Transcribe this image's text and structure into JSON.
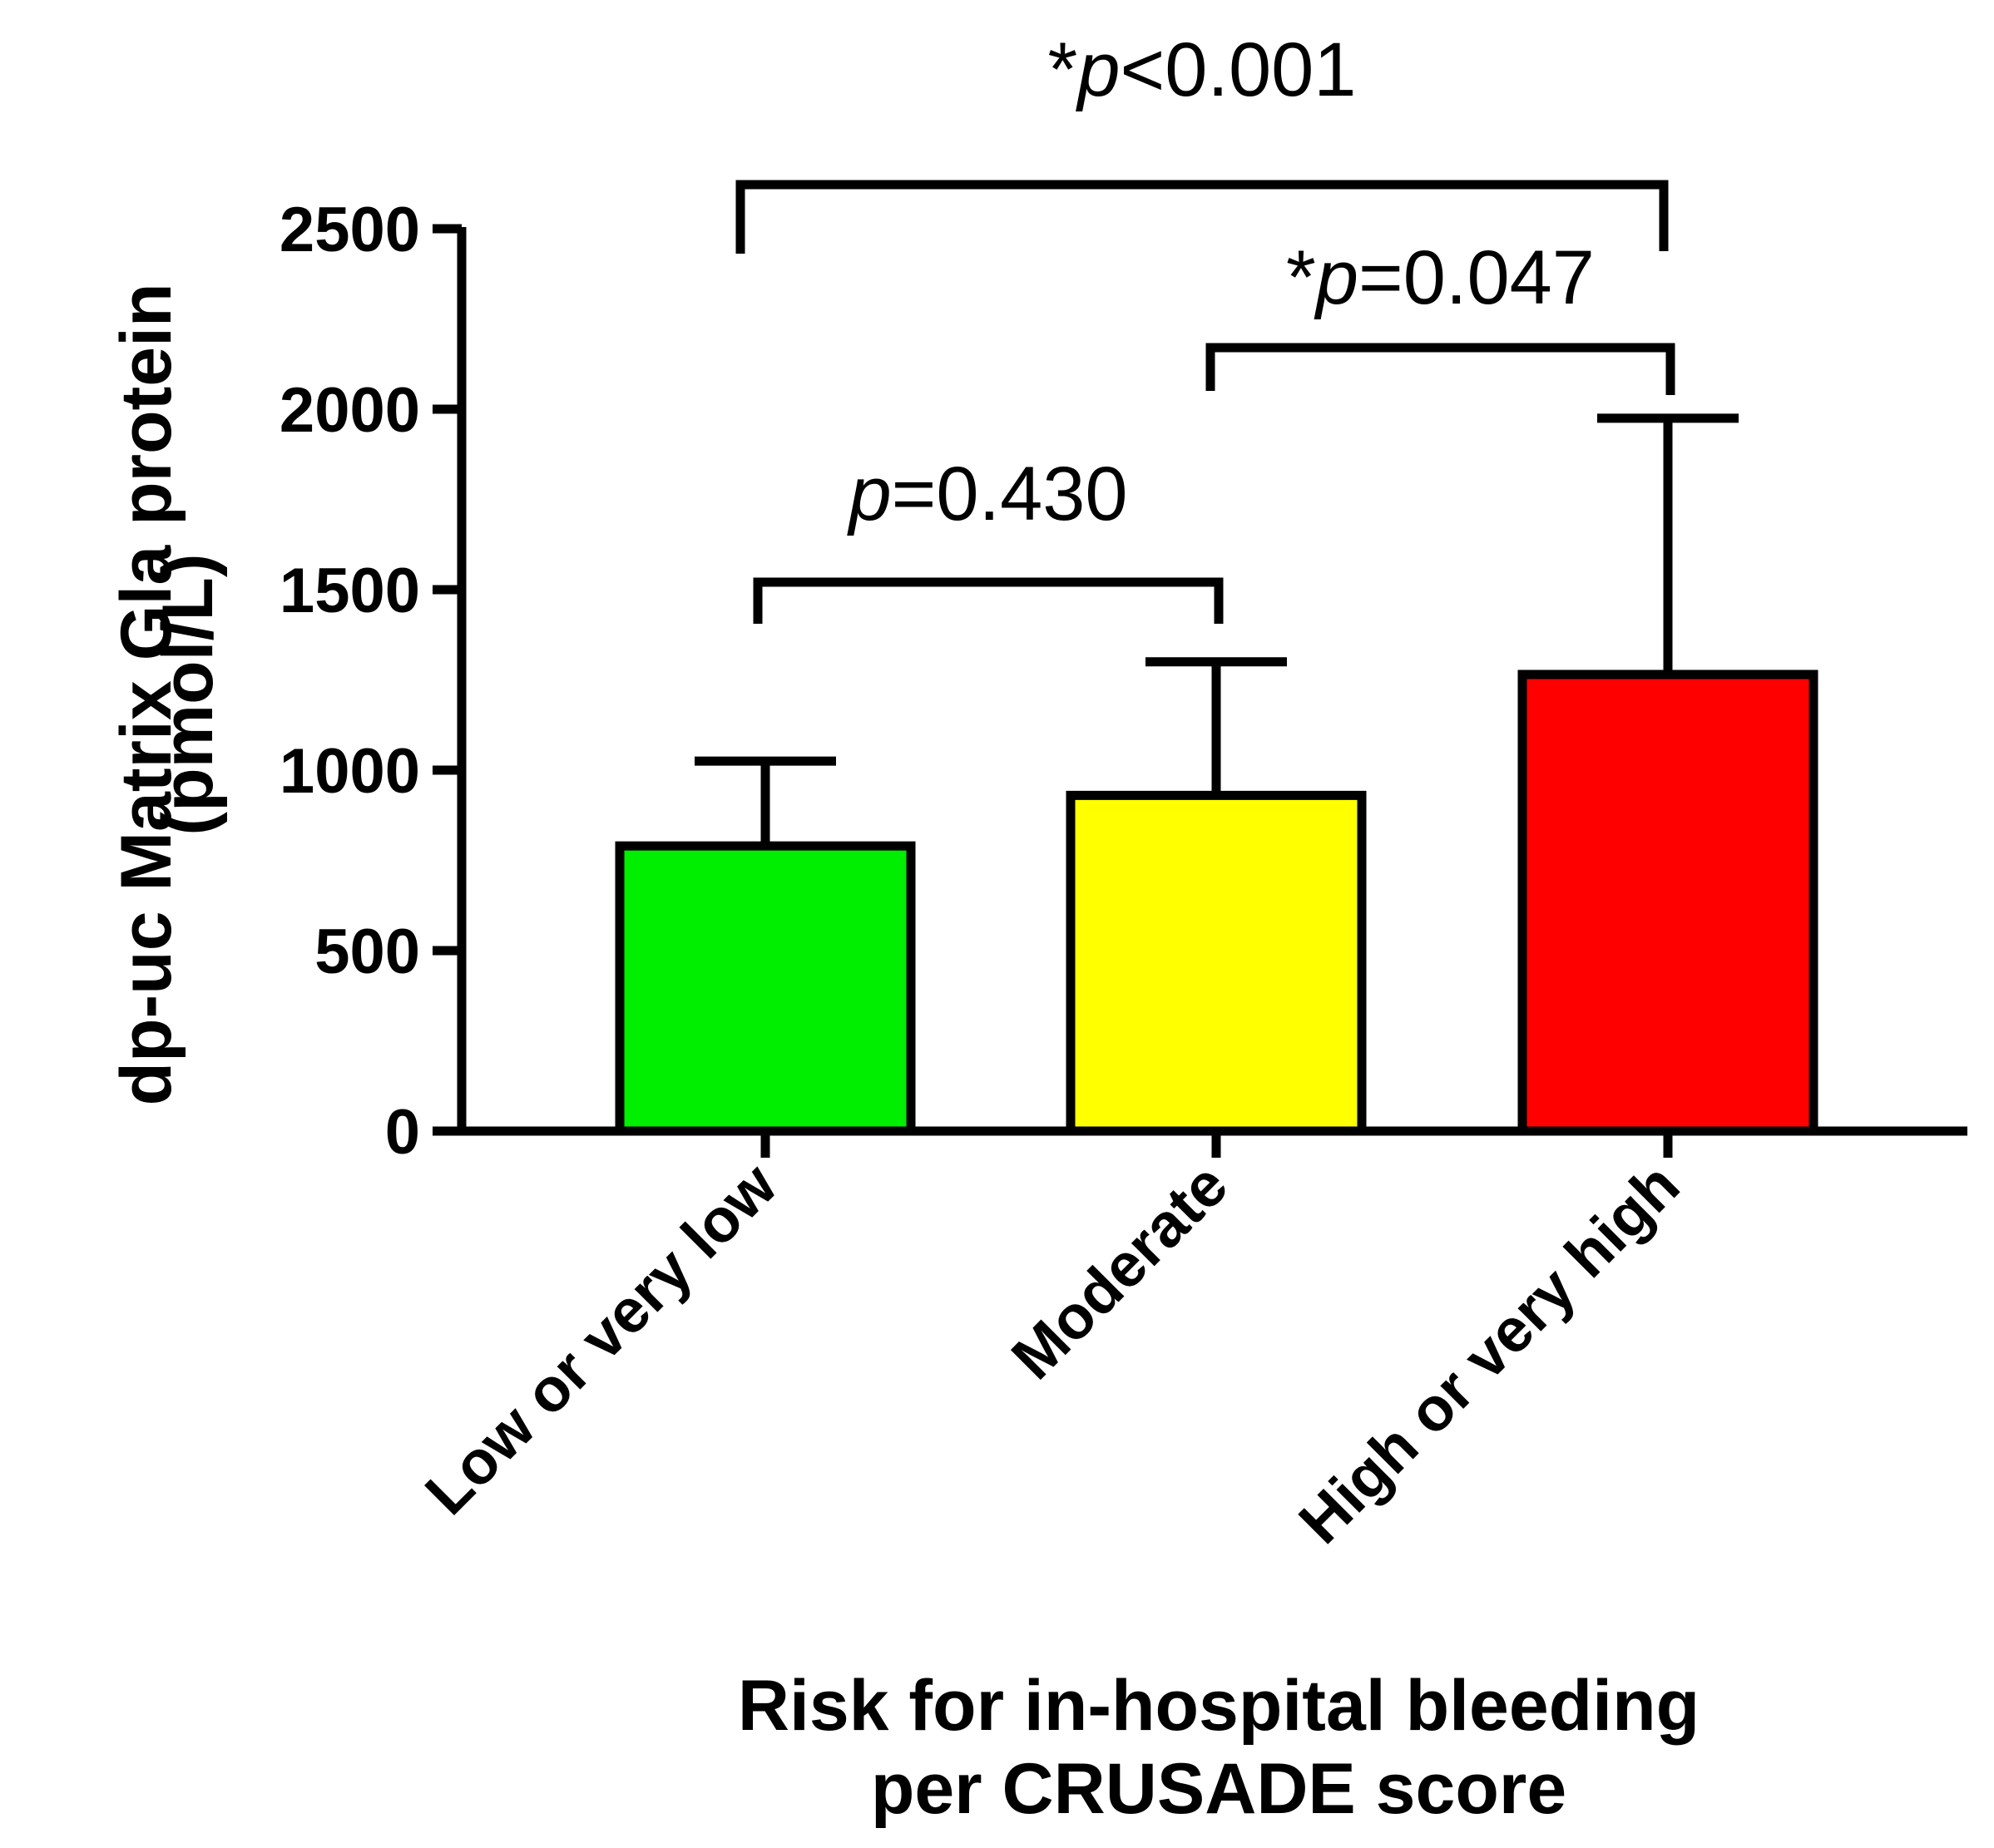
{
  "chart_data": {
    "type": "bar",
    "title": "",
    "xlabel": [
      "Risk for in-hospital bleeding",
      "per CRUSADE score"
    ],
    "ylabel": [
      "dp-uc Matrix Gla protein",
      "(pmol/L)"
    ],
    "ylim": [
      0,
      2500
    ],
    "yticks": [
      0,
      500,
      1000,
      1500,
      2000,
      2500
    ],
    "ytick_labels": [
      "0",
      "500",
      "1000",
      "1500",
      "2000",
      "2500"
    ],
    "categories": [
      "Low or very low",
      "Moderate",
      "High or very high"
    ],
    "values": [
      790,
      930,
      1265
    ],
    "error_upper": [
      1025,
      1300,
      1975
    ],
    "colors": [
      "#00ee00",
      "#ffff00",
      "#ff0000"
    ],
    "comparisons": [
      {
        "from": 0,
        "to": 1,
        "star": "",
        "label": "=0.430"
      },
      {
        "from": 1,
        "to": 2,
        "star": "*",
        "label": "=0.047"
      },
      {
        "from": 0,
        "to": 2,
        "star": "*",
        "label": "<0.001"
      }
    ],
    "p_symbol": "p",
    "grid": false
  }
}
